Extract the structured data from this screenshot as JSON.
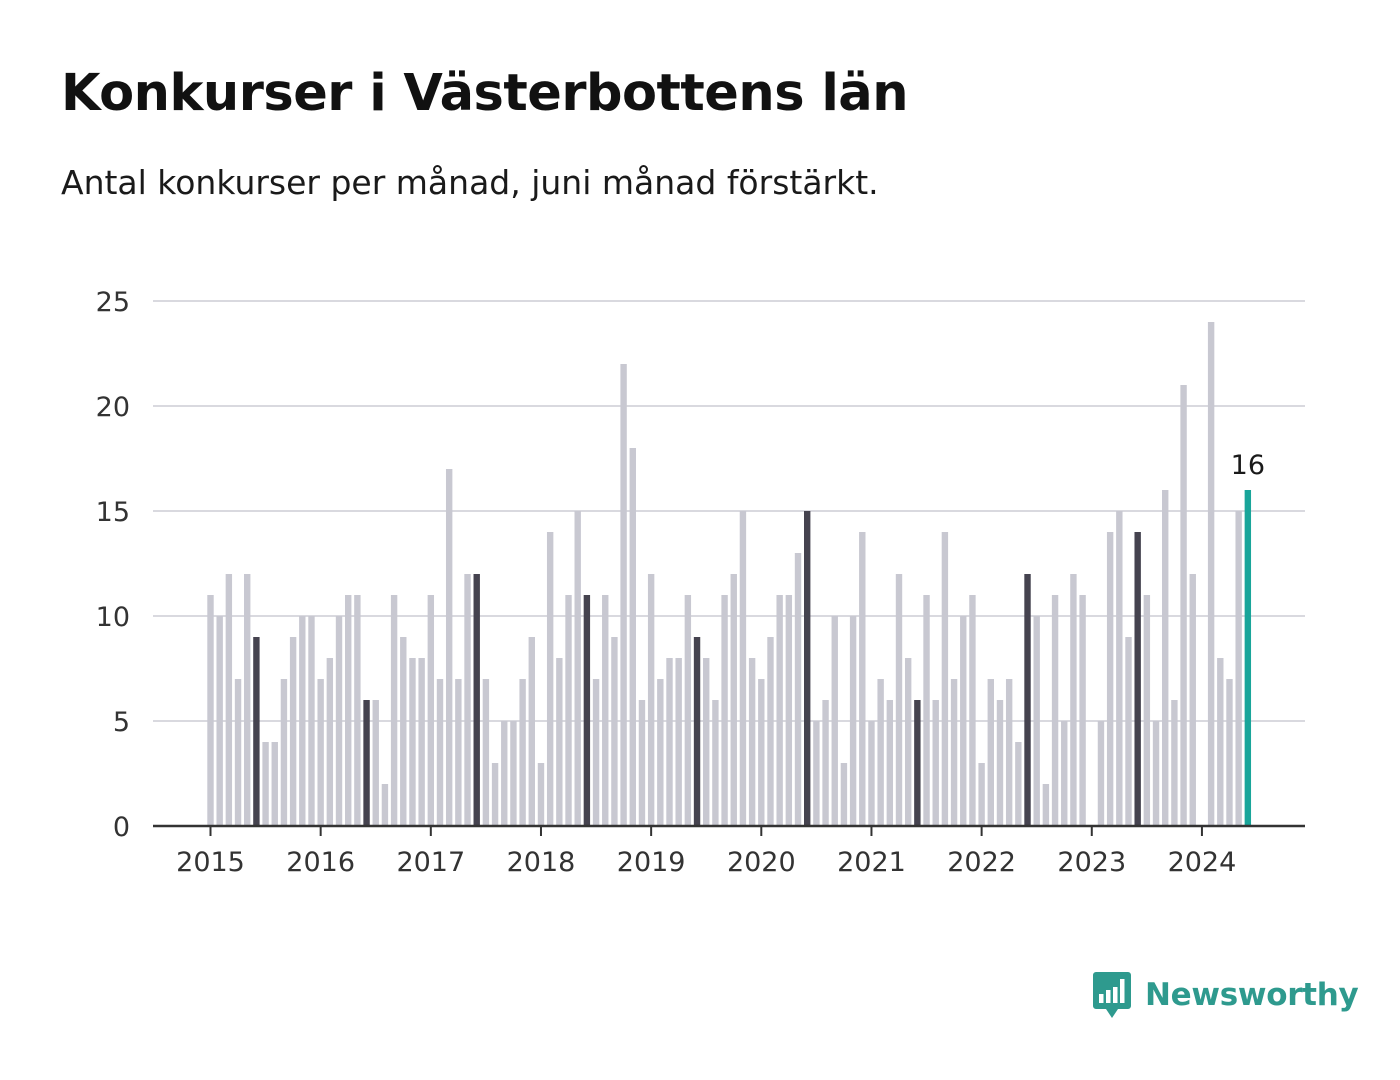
{
  "title": "Konkurser i Västerbottens län",
  "subtitle": "Antal konkurser per månad, juni månad förstärkt.",
  "brand": {
    "name": "Newsworthy",
    "icon": "bar-chart-speech-bubble-icon",
    "color": "#2e9a8e"
  },
  "colors": {
    "bar": "#c8c8d1",
    "highlight": "#45434f",
    "latest": "#19a59a",
    "grid": "#d9d9df",
    "axis": "#333333"
  },
  "chart_data": {
    "type": "bar",
    "title": "Konkurser i Västerbottens län",
    "subtitle": "Antal konkurser per månad, juni månad förstärkt.",
    "xlabel": "",
    "ylabel": "",
    "ylim": [
      0,
      25
    ],
    "yticks": [
      0,
      5,
      10,
      15,
      20,
      25
    ],
    "xticks": [
      "2015",
      "2016",
      "2017",
      "2018",
      "2019",
      "2020",
      "2021",
      "2022",
      "2023",
      "2024"
    ],
    "grid": true,
    "start": "2015-01",
    "highlight_month": "juni",
    "latest_label": "16",
    "series": [
      {
        "values": [
          11,
          10,
          12,
          7,
          12,
          9,
          4,
          4,
          7,
          9,
          10,
          10,
          7,
          8,
          10,
          11,
          11,
          6,
          6,
          2,
          11,
          9,
          8,
          8,
          11,
          7,
          17,
          7,
          12,
          12,
          7,
          3,
          5,
          5,
          7,
          9,
          3,
          14,
          8,
          11,
          15,
          11,
          7,
          11,
          9,
          22,
          18,
          6,
          12,
          7,
          8,
          8,
          11,
          9,
          8,
          6,
          11,
          12,
          15,
          8,
          7,
          9,
          11,
          11,
          13,
          15,
          5,
          6,
          10,
          3,
          10,
          14,
          5,
          7,
          6,
          12,
          8,
          6,
          11,
          6,
          14,
          7,
          10,
          11,
          3,
          7,
          6,
          7,
          4,
          12,
          10,
          2,
          11,
          5,
          12,
          11,
          0,
          5,
          14,
          15,
          9,
          14,
          11,
          5,
          16,
          6,
          21,
          12,
          0,
          24,
          8,
          7,
          15,
          16
        ]
      }
    ]
  }
}
